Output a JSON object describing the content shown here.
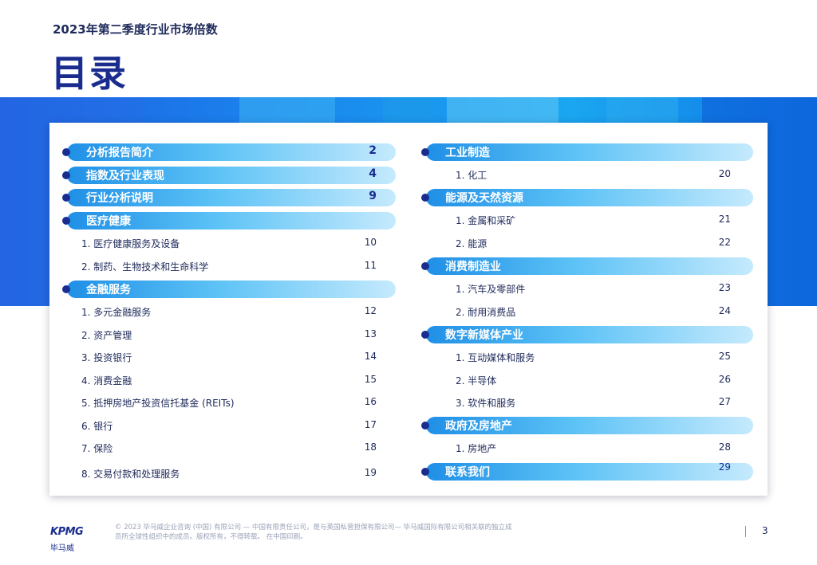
{
  "header": {
    "subtitle": "2023年第二季度行业市场倍数",
    "title": "目录"
  },
  "left": [
    {
      "type": "header",
      "label": "分析报告简介",
      "page": "2"
    },
    {
      "type": "header",
      "label": "指数及行业表现",
      "page": "4"
    },
    {
      "type": "header",
      "label": "行业分析说明",
      "page": "9"
    },
    {
      "type": "header",
      "label": "医疗健康",
      "page": ""
    },
    {
      "type": "item",
      "label": "1. 医疗健康服务及设备",
      "page": "10"
    },
    {
      "type": "item",
      "label": "2. 制药、生物技术和生命科学",
      "page": "11"
    },
    {
      "type": "header",
      "label": "金融服务",
      "page": ""
    },
    {
      "type": "item",
      "label": "1. 多元金融服务",
      "page": "12"
    },
    {
      "type": "item",
      "label": "2. 资产管理",
      "page": "13"
    },
    {
      "type": "item",
      "label": "3. 投资银行",
      "page": "14"
    },
    {
      "type": "item",
      "label": "4. 消费金融",
      "page": "15"
    },
    {
      "type": "item",
      "label": "5. 抵押房地产投资信托基金 (REITs)",
      "page": "16"
    },
    {
      "type": "item",
      "label": "6. 银行",
      "page": "17"
    },
    {
      "type": "item",
      "label": "7. 保险",
      "page": "18"
    },
    {
      "type": "item",
      "label": "8. 交易付款和处理服务",
      "page": "19"
    }
  ],
  "right": [
    {
      "type": "header",
      "label": "工业制造",
      "page": ""
    },
    {
      "type": "item",
      "label": "1. 化工",
      "page": "20"
    },
    {
      "type": "header",
      "label": "能源及天然资源",
      "page": ""
    },
    {
      "type": "item",
      "label": "1. 金属和采矿",
      "page": "21"
    },
    {
      "type": "item",
      "label": "2. 能源",
      "page": "22"
    },
    {
      "type": "header",
      "label": "消费制造业",
      "page": ""
    },
    {
      "type": "item",
      "label": "1. 汽车及零部件",
      "page": "23"
    },
    {
      "type": "item",
      "label": "2. 耐用消费品",
      "page": "24"
    },
    {
      "type": "header",
      "label": "数字新媒体产业",
      "page": ""
    },
    {
      "type": "item",
      "label": "1. 互动媒体和服务",
      "page": "25"
    },
    {
      "type": "item",
      "label": "2. 半导体",
      "page": "26"
    },
    {
      "type": "item",
      "label": "3. 软件和服务",
      "page": "27"
    },
    {
      "type": "header",
      "label": "政府及房地产",
      "page": ""
    },
    {
      "type": "item",
      "label": "1. 房地产",
      "page": "28"
    },
    {
      "type": "header",
      "label": "联系我们",
      "page": "29",
      "page_style": "plain"
    }
  ],
  "footer": {
    "logo_name": "KPMG",
    "logo_chinese": "毕马威",
    "legal": "© 2023 毕马威企业咨询 (中国) 有限公司 — 中国有限责任公司，是与英国私营担保有限公司— 毕马威国际有限公司相关联的独立成员所全球性组织中的成员。版权所有，不得转载。 在中国印刷。",
    "page_number": "3"
  }
}
